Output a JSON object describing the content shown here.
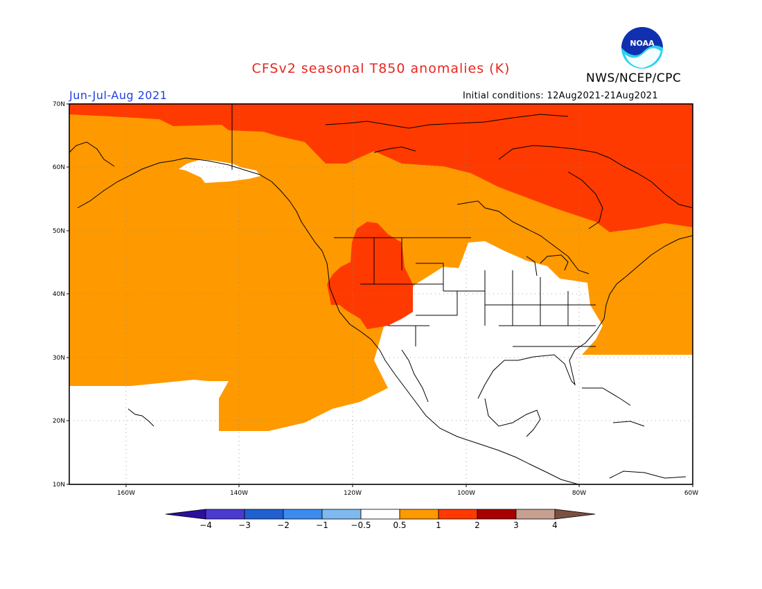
{
  "title": "CFSv2 seasonal T850 anomalies (K)",
  "agency": "NWS/NCEP/CPC",
  "logo_text": "NOAA",
  "season": "Jun-Jul-Aug 2021",
  "initial_conditions": "Initial conditions: 12Aug2021-21Aug2021",
  "axes": {
    "lat_labels": [
      "70N",
      "60N",
      "50N",
      "40N",
      "30N",
      "20N",
      "10N"
    ],
    "lon_labels": [
      "160W",
      "140W",
      "120W",
      "100W",
      "80W",
      "60W"
    ]
  },
  "colorbar": {
    "labels": [
      "-4",
      "-3",
      "-2",
      "-1",
      "-0.5",
      "0.5",
      "1",
      "2",
      "3",
      "4"
    ],
    "colors": [
      "#2b0f9e",
      "#4a3ad0",
      "#2060d0",
      "#3c8cf0",
      "#80b8f0",
      "#ffffff",
      "#ff9900",
      "#ff3a00",
      "#a80000",
      "#c8a090",
      "#7a5040"
    ]
  },
  "colors": {
    "warm_1": "#ff9900",
    "warm_2": "#ff3a00",
    "neutral": "#ffffff"
  }
}
